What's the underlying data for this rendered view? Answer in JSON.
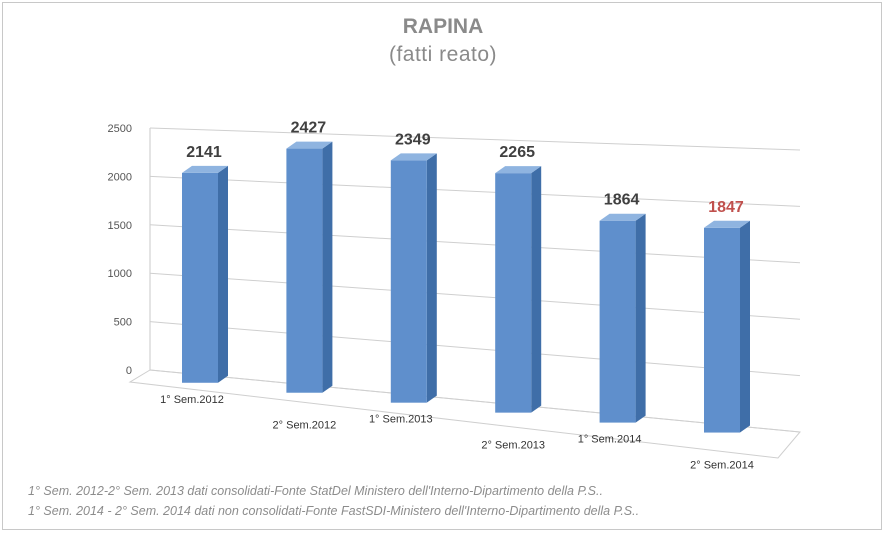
{
  "chart_data": {
    "type": "bar",
    "title": "RAPINA",
    "subtitle": "(fatti reato)",
    "categories": [
      "1° Sem.2012",
      "2° Sem.2012",
      "1° Sem.2013",
      "2° Sem.2013",
      "1° Sem.2014",
      "2° Sem.2014"
    ],
    "values": [
      2141,
      2427,
      2349,
      2265,
      1864,
      1847
    ],
    "ylim": [
      0,
      2500
    ],
    "yticks": [
      "0",
      "500",
      "1000",
      "1500",
      "2000",
      "2500"
    ],
    "grid": true,
    "style": "3d-column",
    "colors": {
      "bar_front": "#5f8fcc",
      "bar_side": "#3f6ea8",
      "bar_top": "#8fb4e0",
      "label": "#404040",
      "highlight_label": "#c0504d"
    },
    "highlight_index": 5
  },
  "footnotes": [
    "1° Sem. 2012-2° Sem. 2013 dati consolidati-Fonte StatDel Ministero dell'Interno-Dipartimento della P.S..",
    "1° Sem. 2014 - 2° Sem. 2014 dati non consolidati-Fonte FastSDI-Ministero dell'Interno-Dipartimento della P.S.."
  ]
}
